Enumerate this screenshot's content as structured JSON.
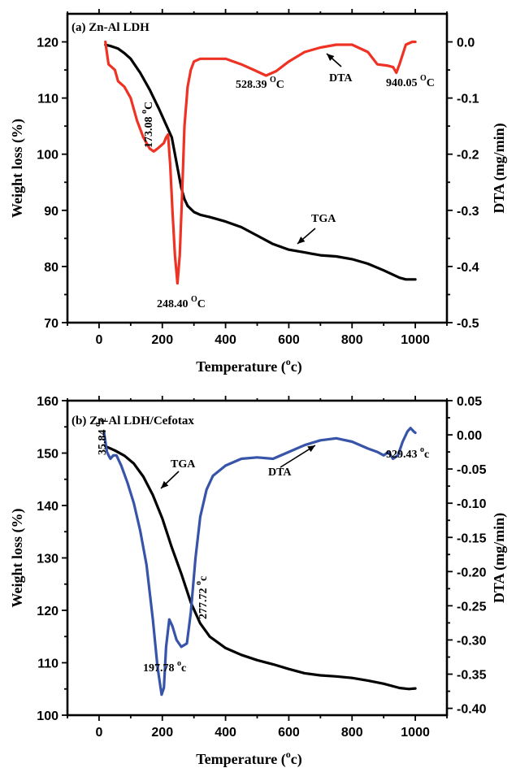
{
  "chart_data": [
    {
      "type": "line",
      "title": "(a) Zn-Al  LDH",
      "xlabel": "Temperature (°c)",
      "xlabel_main": "Temperature (",
      "xlabel_sup": "o",
      "xlabel_end": "c)",
      "ylabel": "Weight loss (%)",
      "y2label": "DTA (mg/min)",
      "xlim": [
        -100,
        1100
      ],
      "ylim": [
        70,
        125
      ],
      "y2lim": [
        -0.5,
        0.05
      ],
      "xticks": [
        "0",
        "200",
        "400",
        "600",
        "800",
        "1000"
      ],
      "xtick_values": [
        0,
        200,
        400,
        600,
        800,
        1000
      ],
      "yticks": [
        "70",
        "80",
        "90",
        "100",
        "110",
        "120"
      ],
      "ytick_values": [
        70,
        80,
        90,
        100,
        110,
        120
      ],
      "y2ticks": [
        "-0.5",
        "-0.4",
        "-0.3",
        "-0.2",
        "-0.1",
        "0.0"
      ],
      "y2tick_values": [
        -0.5,
        -0.4,
        -0.3,
        -0.2,
        -0.1,
        0.0
      ],
      "series": [
        {
          "name": "TGA",
          "axis": "left",
          "color": "#000000",
          "x": [
            20,
            40,
            60,
            80,
            100,
            130,
            160,
            190,
            210,
            230,
            240,
            250,
            260,
            270,
            280,
            300,
            320,
            350,
            400,
            450,
            500,
            550,
            600,
            650,
            700,
            750,
            800,
            850,
            900,
            950,
            970,
            1000
          ],
          "y": [
            119.5,
            119.2,
            118.8,
            118,
            117,
            114.5,
            111.5,
            108,
            105.5,
            103,
            100,
            97,
            94,
            92,
            90.8,
            89.7,
            89.2,
            88.8,
            88,
            87,
            85.5,
            84,
            83,
            82.5,
            82,
            81.8,
            81.3,
            80.5,
            79.3,
            78,
            77.7,
            77.7
          ]
        },
        {
          "name": "DTA",
          "axis": "right",
          "color": "#ee3224",
          "x": [
            20,
            25,
            30,
            40,
            50,
            60,
            80,
            100,
            120,
            140,
            160,
            173,
            185,
            195,
            205,
            212,
            218,
            225,
            232,
            240,
            248,
            255,
            262,
            270,
            280,
            290,
            300,
            320,
            350,
            400,
            450,
            490,
            528,
            560,
            600,
            650,
            700,
            750,
            800,
            850,
            880,
            910,
            930,
            940,
            950,
            970,
            990,
            1000
          ],
          "y": [
            0.0,
            -0.02,
            -0.04,
            -0.045,
            -0.05,
            -0.07,
            -0.08,
            -0.1,
            -0.14,
            -0.17,
            -0.19,
            -0.195,
            -0.19,
            -0.185,
            -0.18,
            -0.17,
            -0.165,
            -0.22,
            -0.3,
            -0.38,
            -0.43,
            -0.38,
            -0.28,
            -0.15,
            -0.08,
            -0.05,
            -0.035,
            -0.03,
            -0.03,
            -0.03,
            -0.04,
            -0.05,
            -0.06,
            -0.052,
            -0.035,
            -0.018,
            -0.01,
            -0.005,
            -0.005,
            -0.018,
            -0.04,
            -0.042,
            -0.045,
            -0.055,
            -0.04,
            -0.005,
            0.0,
            0.0
          ]
        }
      ],
      "annotations": [
        {
          "text": "173.08",
          "sup": "o",
          "unit": "C",
          "x": 173.08,
          "rotate": -90
        },
        {
          "text": "248.40",
          "sup": "O",
          "unit": "C",
          "x": 248.4
        },
        {
          "text": "528.39",
          "sup": "O",
          "unit": "C",
          "x": 528.39
        },
        {
          "text": "940.05",
          "sup": "O",
          "unit": "C",
          "x": 940.05
        },
        {
          "text": "DTA",
          "label_for": "DTA"
        },
        {
          "text": "TGA",
          "label_for": "TGA"
        }
      ]
    },
    {
      "type": "line",
      "title": "(b) Zn-Al  LDH/Cefotax",
      "xlabel": "Temperature (°c)",
      "xlabel_main": "Temperature (",
      "xlabel_sup": "o",
      "xlabel_end": "c)",
      "ylabel": "Weight loss (%)",
      "y2label": "DTA (mg/min)",
      "xlim": [
        -100,
        1100
      ],
      "ylim": [
        100,
        160
      ],
      "y2lim": [
        -0.41,
        0.05
      ],
      "xticks": [
        "0",
        "200",
        "400",
        "600",
        "800",
        "1000"
      ],
      "xtick_values": [
        0,
        200,
        400,
        600,
        800,
        1000
      ],
      "yticks": [
        "100",
        "110",
        "120",
        "130",
        "140",
        "150",
        "160"
      ],
      "ytick_values": [
        100,
        110,
        120,
        130,
        140,
        150,
        160
      ],
      "y2ticks": [
        "-0.40",
        "-0.35",
        "-0.30",
        "-0.25",
        "-0.20",
        "-0.15",
        "-0.10",
        "-0.05",
        "0.00",
        "0.05"
      ],
      "y2tick_values": [
        -0.4,
        -0.35,
        -0.3,
        -0.25,
        -0.2,
        -0.15,
        -0.1,
        -0.05,
        0.0,
        0.05
      ],
      "series": [
        {
          "name": "TGA",
          "axis": "left",
          "color": "#000000",
          "x": [
            20,
            50,
            80,
            110,
            140,
            170,
            200,
            230,
            260,
            290,
            320,
            350,
            400,
            450,
            500,
            550,
            600,
            650,
            700,
            750,
            800,
            850,
            900,
            950,
            980,
            1000
          ],
          "y": [
            151.3,
            150.5,
            149.5,
            148,
            145.5,
            142,
            137.5,
            132,
            127,
            121.5,
            117.5,
            115,
            112.8,
            111.5,
            110.5,
            109.7,
            108.8,
            108,
            107.6,
            107.4,
            107.1,
            106.6,
            106,
            105.2,
            105,
            105.1
          ]
        },
        {
          "name": "DTA",
          "axis": "right",
          "color": "#3754a8",
          "x": [
            15,
            20,
            25,
            30,
            35.84,
            45,
            55,
            70,
            90,
            110,
            130,
            150,
            170,
            185,
            197.78,
            205,
            212,
            222,
            232,
            245,
            260,
            277.72,
            290,
            305,
            320,
            340,
            360,
            400,
            450,
            500,
            550,
            600,
            650,
            700,
            750,
            800,
            850,
            880,
            900,
            915,
            929.43,
            945,
            960,
            975,
            985,
            995,
            1000
          ],
          "y": [
            0.005,
            -0.01,
            -0.025,
            -0.03,
            -0.035,
            -0.03,
            -0.03,
            -0.045,
            -0.07,
            -0.1,
            -0.14,
            -0.19,
            -0.27,
            -0.34,
            -0.38,
            -0.37,
            -0.31,
            -0.27,
            -0.28,
            -0.3,
            -0.31,
            -0.305,
            -0.26,
            -0.18,
            -0.12,
            -0.08,
            -0.06,
            -0.045,
            -0.035,
            -0.033,
            -0.035,
            -0.025,
            -0.015,
            -0.008,
            -0.005,
            -0.01,
            -0.02,
            -0.025,
            -0.03,
            -0.025,
            -0.035,
            -0.03,
            -0.01,
            0.005,
            0.01,
            0.005,
            0.003
          ]
        }
      ],
      "annotations": [
        {
          "text": "35.84",
          "sup": "o",
          "unit": "c",
          "x": 35.84,
          "rotate": -90
        },
        {
          "text": "197.78",
          "sup": "o",
          "unit": "c",
          "x": 197.78
        },
        {
          "text": "277.72",
          "sup": "o",
          "unit": "c",
          "x": 277.72,
          "rotate": -90
        },
        {
          "text": "929.43",
          "sup": "o",
          "unit": "c",
          "x": 929.43
        },
        {
          "text": "DTA",
          "label_for": "DTA"
        },
        {
          "text": "TGA",
          "label_for": "TGA"
        }
      ]
    }
  ]
}
